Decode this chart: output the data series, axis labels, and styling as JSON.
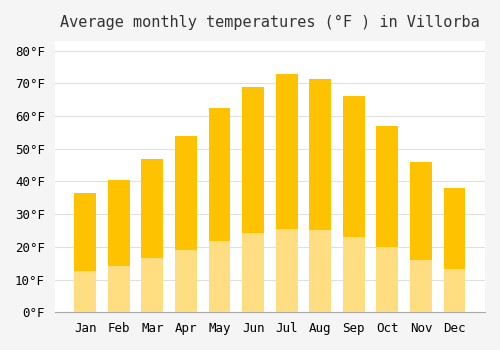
{
  "title": "Average monthly temperatures (°F ) in Villorba",
  "months": [
    "Jan",
    "Feb",
    "Mar",
    "Apr",
    "May",
    "Jun",
    "Jul",
    "Aug",
    "Sep",
    "Oct",
    "Nov",
    "Dec"
  ],
  "values": [
    36.5,
    40.5,
    47.0,
    54.0,
    62.5,
    69.0,
    73.0,
    71.5,
    66.0,
    57.0,
    46.0,
    38.0
  ],
  "bar_color_top": "#FFC200",
  "bar_color_bottom": "#FFDD80",
  "background_color": "#f5f5f5",
  "plot_bg_color": "#ffffff",
  "grid_color": "#e0e0e0",
  "yticks": [
    0,
    10,
    20,
    30,
    40,
    50,
    60,
    70,
    80
  ],
  "ylim": [
    0,
    83
  ],
  "title_fontsize": 11,
  "tick_fontsize": 9,
  "font_family": "monospace"
}
